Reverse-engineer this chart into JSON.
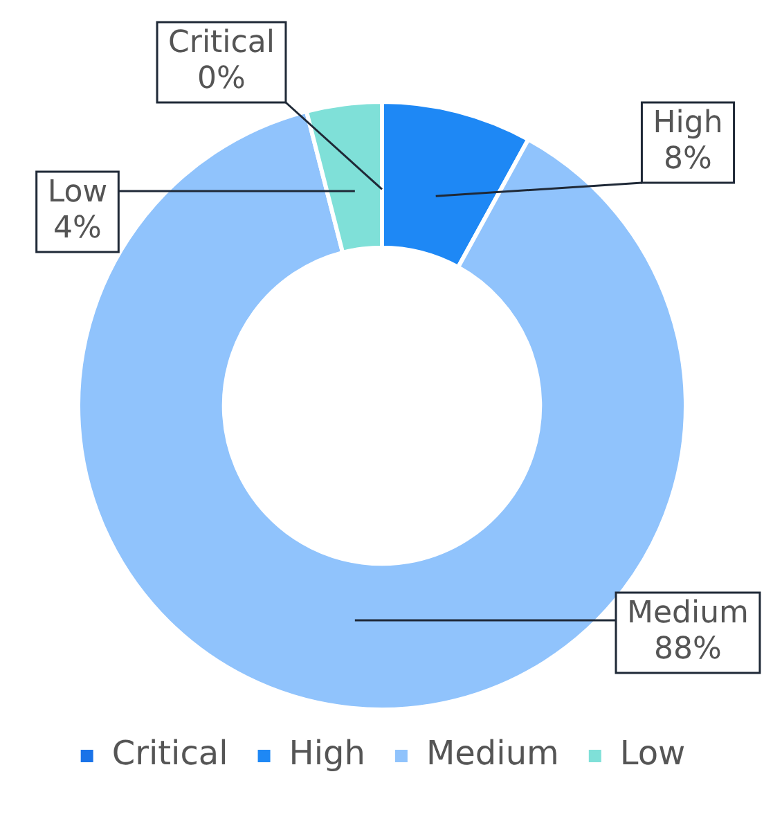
{
  "chart_data": {
    "type": "donut",
    "categories": [
      "Critical",
      "High",
      "Medium",
      "Low"
    ],
    "values": [
      0,
      8,
      88,
      4
    ],
    "colors": [
      "#1a73e8",
      "#1e88f5",
      "#90c3fc",
      "#7fe0d8"
    ],
    "value_labels": [
      "0%",
      "8%",
      "88%",
      "4%"
    ],
    "legend": "bottom"
  }
}
